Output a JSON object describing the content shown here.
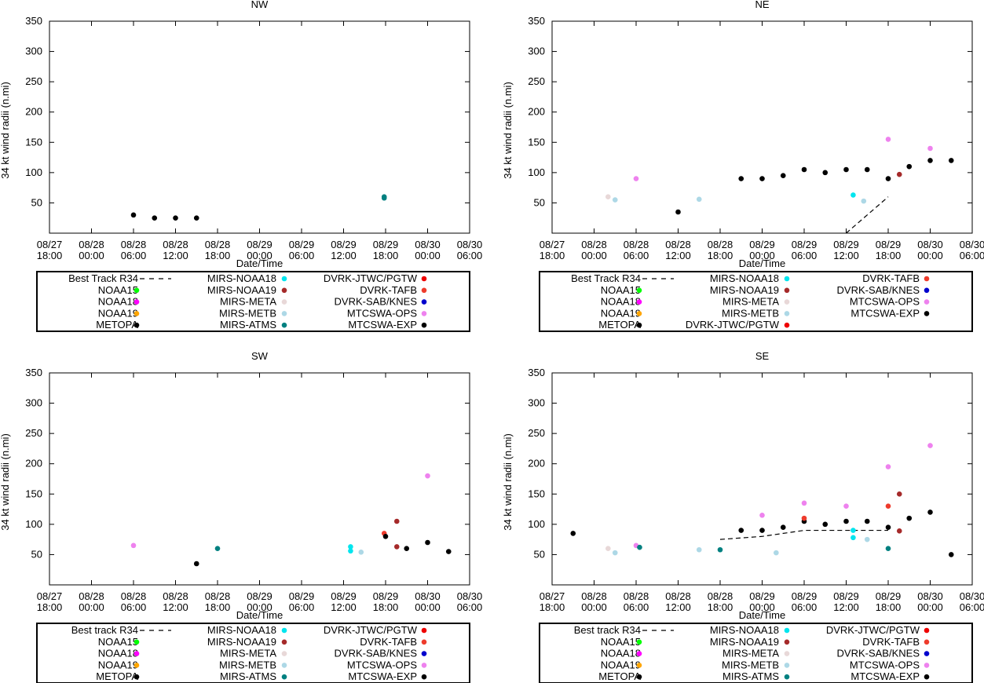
{
  "chart_data": [
    {
      "type": "scatter",
      "title": "NW",
      "xlabel": "Date/Time",
      "ylabel": "34 kt wind radii (n.mi)",
      "xlim": [
        0,
        60
      ],
      "ylim": [
        0,
        350
      ],
      "yticks": [
        50,
        100,
        150,
        200,
        250,
        300,
        350
      ],
      "xtick_labels": [
        [
          "08/27",
          "18:00"
        ],
        [
          "08/28",
          "00:00"
        ],
        [
          "08/28",
          "06:00"
        ],
        [
          "08/28",
          "12:00"
        ],
        [
          "08/28",
          "18:00"
        ],
        [
          "08/29",
          "00:00"
        ],
        [
          "08/29",
          "06:00"
        ],
        [
          "08/29",
          "12:00"
        ],
        [
          "08/29",
          "18:00"
        ],
        [
          "08/30",
          "00:00"
        ],
        [
          "08/30",
          "06:00"
        ]
      ],
      "best_track": [],
      "series": [
        {
          "name": "METOPA",
          "color": "#000000",
          "points": [
            [
              12,
              30
            ],
            [
              15,
              25
            ],
            [
              18,
              25
            ],
            [
              21,
              25
            ]
          ]
        },
        {
          "name": "MIRS-ATMS",
          "color": "#008080",
          "points": [
            [
              47.8,
              60
            ],
            [
              47.8,
              58
            ]
          ]
        }
      ],
      "legend": {
        "columns": [
          [
            {
              "label": "Best Track R34",
              "style": "dash"
            },
            {
              "label": "NOAA15",
              "color": "#00ff00"
            },
            {
              "label": "NOAA18",
              "color": "#ff00ff"
            },
            {
              "label": "NOAA19",
              "color": "#ffa500"
            },
            {
              "label": "METOPA",
              "color": "#000000"
            }
          ],
          [
            {
              "label": "MIRS-NOAA18",
              "color": "#00e5ee"
            },
            {
              "label": "MIRS-NOAA19",
              "color": "#a52a2a"
            },
            {
              "label": "MIRS-META",
              "color": "#e8d8d8"
            },
            {
              "label": "MIRS-METB",
              "color": "#add8e6"
            },
            {
              "label": "MIRS-ATMS",
              "color": "#008080"
            }
          ],
          [
            {
              "label": "DVRK-JTWC/PGTW",
              "color": "#ee0000"
            },
            {
              "label": "DVRK-TAFB",
              "color": "#ee3b2c"
            },
            {
              "label": "DVRK-SAB/KNES",
              "color": "#0000cd"
            },
            {
              "label": "MTCSWA-OPS",
              "color": "#ee82ee"
            },
            {
              "label": "MTCSWA-EXP",
              "color": "#000000"
            }
          ]
        ]
      }
    },
    {
      "type": "scatter",
      "title": "NE",
      "xlabel": "Date/Time",
      "ylabel": "34 kt wind radii (n.mi)",
      "xlim": [
        0,
        60
      ],
      "ylim": [
        0,
        350
      ],
      "yticks": [
        50,
        100,
        150,
        200,
        250,
        300,
        350
      ],
      "xtick_labels": [
        [
          "08/27",
          "18:00"
        ],
        [
          "08/28",
          "00:00"
        ],
        [
          "08/28",
          "06:00"
        ],
        [
          "08/28",
          "12:00"
        ],
        [
          "08/28",
          "18:00"
        ],
        [
          "08/29",
          "00:00"
        ],
        [
          "08/29",
          "06:00"
        ],
        [
          "08/29",
          "12:00"
        ],
        [
          "08/29",
          "18:00"
        ],
        [
          "08/30",
          "00:00"
        ],
        [
          "08/30",
          "06:00"
        ]
      ],
      "best_track": [
        [
          42,
          0
        ],
        [
          48,
          60
        ]
      ],
      "series": [
        {
          "name": "MIRS-META",
          "color": "#e8d8d8",
          "points": [
            [
              8,
              60
            ]
          ]
        },
        {
          "name": "MIRS-METB",
          "color": "#add8e6",
          "points": [
            [
              9,
              55
            ],
            [
              21,
              56
            ],
            [
              44.5,
              53
            ]
          ]
        },
        {
          "name": "MTCSWA-OPS",
          "color": "#ee82ee",
          "points": [
            [
              12,
              90
            ],
            [
              48,
              155
            ],
            [
              54,
              140
            ]
          ]
        },
        {
          "name": "METOPA",
          "color": "#000000",
          "points": [
            [
              18,
              35
            ]
          ]
        },
        {
          "name": "MTCSWA-EXP",
          "color": "#000000",
          "points": [
            [
              27,
              90
            ],
            [
              30,
              90
            ],
            [
              33,
              95
            ],
            [
              36,
              105
            ],
            [
              39,
              100
            ],
            [
              42,
              105
            ],
            [
              45,
              105
            ],
            [
              48,
              90
            ],
            [
              51,
              110
            ],
            [
              54,
              120
            ],
            [
              57,
              120
            ]
          ]
        },
        {
          "name": "MIRS-NOAA18",
          "color": "#00e5ee",
          "points": [
            [
              43,
              63
            ]
          ]
        },
        {
          "name": "MIRS-NOAA19",
          "color": "#a52a2a",
          "points": [
            [
              49.6,
              97
            ]
          ]
        }
      ],
      "legend": {
        "columns": [
          [
            {
              "label": "Best Track R34",
              "style": "dash"
            },
            {
              "label": "NOAA15",
              "color": "#00ff00"
            },
            {
              "label": "NOAA18",
              "color": "#ff00ff"
            },
            {
              "label": "NOAA19",
              "color": "#ffa500"
            },
            {
              "label": "METOPA",
              "color": "#000000"
            }
          ],
          [
            {
              "label": "MIRS-NOAA18",
              "color": "#00e5ee"
            },
            {
              "label": "MIRS-NOAA19",
              "color": "#a52a2a"
            },
            {
              "label": "MIRS-META",
              "color": "#e8d8d8"
            },
            {
              "label": "MIRS-METB",
              "color": "#add8e6"
            },
            {
              "label": "DVRK-JTWC/PGTW",
              "color": "#ee0000"
            }
          ],
          [
            {
              "label": "DVRK-TAFB",
              "color": "#ee3b2c"
            },
            {
              "label": "DVRK-SAB/KNES",
              "color": "#0000cd"
            },
            {
              "label": "MTCSWA-OPS",
              "color": "#ee82ee"
            },
            {
              "label": "MTCSWA-EXP",
              "color": "#000000"
            }
          ]
        ]
      }
    },
    {
      "type": "scatter",
      "title": "SW",
      "xlabel": "Date/Time",
      "ylabel": "34 kt wind radii (n.mi)",
      "xlim": [
        0,
        60
      ],
      "ylim": [
        0,
        350
      ],
      "yticks": [
        50,
        100,
        150,
        200,
        250,
        300,
        350
      ],
      "xtick_labels": [
        [
          "08/27",
          "18:00"
        ],
        [
          "08/28",
          "00:00"
        ],
        [
          "08/28",
          "06:00"
        ],
        [
          "08/28",
          "12:00"
        ],
        [
          "08/28",
          "18:00"
        ],
        [
          "08/29",
          "00:00"
        ],
        [
          "08/29",
          "06:00"
        ],
        [
          "08/29",
          "12:00"
        ],
        [
          "08/29",
          "18:00"
        ],
        [
          "08/30",
          "00:00"
        ],
        [
          "08/30",
          "06:00"
        ]
      ],
      "best_track": [],
      "series": [
        {
          "name": "MTCSWA-OPS",
          "color": "#ee82ee",
          "points": [
            [
              12,
              65
            ],
            [
              54,
              180
            ]
          ]
        },
        {
          "name": "METOPA",
          "color": "#000000",
          "points": [
            [
              21,
              35
            ]
          ]
        },
        {
          "name": "MIRS-ATMS",
          "color": "#008080",
          "points": [
            [
              24,
              60
            ]
          ]
        },
        {
          "name": "MIRS-NOAA18",
          "color": "#00e5ee",
          "points": [
            [
              43,
              63
            ],
            [
              43,
              56
            ]
          ]
        },
        {
          "name": "MIRS-METB",
          "color": "#add8e6",
          "points": [
            [
              44.5,
              54
            ]
          ]
        },
        {
          "name": "DVRK-TAFB",
          "color": "#ee3b2c",
          "points": [
            [
              47.8,
              85
            ]
          ]
        },
        {
          "name": "MIRS-NOAA19",
          "color": "#a52a2a",
          "points": [
            [
              49.6,
              105
            ],
            [
              49.6,
              63
            ]
          ]
        },
        {
          "name": "MTCSWA-EXP",
          "color": "#000000",
          "points": [
            [
              48,
              80
            ],
            [
              51,
              60
            ],
            [
              54,
              70
            ],
            [
              57,
              55
            ]
          ]
        }
      ],
      "legend": {
        "columns": [
          [
            {
              "label": "Best track R34",
              "style": "dash"
            },
            {
              "label": "NOAA15",
              "color": "#00ff00"
            },
            {
              "label": "NOAA18",
              "color": "#ff00ff"
            },
            {
              "label": "NOAA19",
              "color": "#ffa500"
            },
            {
              "label": "METOPA",
              "color": "#000000"
            }
          ],
          [
            {
              "label": "MIRS-NOAA18",
              "color": "#00e5ee"
            },
            {
              "label": "MIRS-NOAA19",
              "color": "#a52a2a"
            },
            {
              "label": "MIRS-META",
              "color": "#e8d8d8"
            },
            {
              "label": "MIRS-METB",
              "color": "#add8e6"
            },
            {
              "label": "MIRS-ATMS",
              "color": "#008080"
            }
          ],
          [
            {
              "label": "DVRK-JTWC/PGTW",
              "color": "#ee0000"
            },
            {
              "label": "DVRK-TAFB",
              "color": "#ee3b2c"
            },
            {
              "label": "DVRK-SAB/KNES",
              "color": "#0000cd"
            },
            {
              "label": "MTCSWA-OPS",
              "color": "#ee82ee"
            },
            {
              "label": "MTCSWA-EXP",
              "color": "#000000"
            }
          ]
        ]
      }
    },
    {
      "type": "scatter",
      "title": "SE",
      "xlabel": "Date/Time",
      "ylabel": "34 kt wind radii (n.mi)",
      "xlim": [
        0,
        60
      ],
      "ylim": [
        0,
        350
      ],
      "yticks": [
        50,
        100,
        150,
        200,
        250,
        300,
        350
      ],
      "xtick_labels": [
        [
          "08/27",
          "18:00"
        ],
        [
          "08/28",
          "00:00"
        ],
        [
          "08/28",
          "06:00"
        ],
        [
          "08/28",
          "12:00"
        ],
        [
          "08/28",
          "18:00"
        ],
        [
          "08/29",
          "00:00"
        ],
        [
          "08/29",
          "06:00"
        ],
        [
          "08/29",
          "12:00"
        ],
        [
          "08/29",
          "18:00"
        ],
        [
          "08/30",
          "00:00"
        ],
        [
          "08/30",
          "06:00"
        ]
      ],
      "best_track": [
        [
          24,
          75
        ],
        [
          30,
          80
        ],
        [
          36,
          90
        ],
        [
          42,
          90
        ],
        [
          48,
          90
        ]
      ],
      "series": [
        {
          "name": "METOPA",
          "color": "#000000",
          "points": [
            [
              3,
              85
            ],
            [
              57,
              50
            ]
          ]
        },
        {
          "name": "MIRS-META",
          "color": "#e8d8d8",
          "points": [
            [
              8,
              60
            ]
          ]
        },
        {
          "name": "MIRS-METB",
          "color": "#add8e6",
          "points": [
            [
              9,
              53
            ],
            [
              21,
              58
            ],
            [
              32,
              53
            ],
            [
              45,
              75
            ]
          ]
        },
        {
          "name": "MTCSWA-OPS",
          "color": "#ee82ee",
          "points": [
            [
              12,
              65
            ],
            [
              30,
              115
            ],
            [
              36,
              135
            ],
            [
              42,
              130
            ],
            [
              48,
              195
            ],
            [
              54,
              230
            ]
          ]
        },
        {
          "name": "MIRS-ATMS",
          "color": "#008080",
          "points": [
            [
              12.5,
              62
            ],
            [
              24,
              58
            ],
            [
              48,
              60
            ]
          ]
        },
        {
          "name": "MTCSWA-EXP",
          "color": "#000000",
          "points": [
            [
              27,
              90
            ],
            [
              30,
              90
            ],
            [
              33,
              95
            ],
            [
              36,
              105
            ],
            [
              39,
              100
            ],
            [
              42,
              105
            ],
            [
              45,
              105
            ],
            [
              48,
              95
            ],
            [
              51,
              110
            ],
            [
              54,
              120
            ]
          ]
        },
        {
          "name": "DVRK-TAFB",
          "color": "#ee3b2c",
          "points": [
            [
              36,
              110
            ],
            [
              48,
              130
            ]
          ]
        },
        {
          "name": "MIRS-NOAA18",
          "color": "#00e5ee",
          "points": [
            [
              43,
              90
            ],
            [
              43,
              78
            ]
          ]
        },
        {
          "name": "MIRS-NOAA19",
          "color": "#a52a2a",
          "points": [
            [
              49.6,
              150
            ],
            [
              49.6,
              89
            ]
          ]
        }
      ],
      "legend": {
        "columns": [
          [
            {
              "label": "Best track R34",
              "style": "dash"
            },
            {
              "label": "NOAA15",
              "color": "#00ff00"
            },
            {
              "label": "NOAA18",
              "color": "#ff00ff"
            },
            {
              "label": "NOAA19",
              "color": "#ffa500"
            },
            {
              "label": "METOPA",
              "color": "#000000"
            }
          ],
          [
            {
              "label": "MIRS-NOAA18",
              "color": "#00e5ee"
            },
            {
              "label": "MIRS-NOAA19",
              "color": "#a52a2a"
            },
            {
              "label": "MIRS-META",
              "color": "#e8d8d8"
            },
            {
              "label": "MIRS-METB",
              "color": "#add8e6"
            },
            {
              "label": "MIRS-ATMS",
              "color": "#008080"
            }
          ],
          [
            {
              "label": "DVRK-JTWC/PGTW",
              "color": "#ee0000"
            },
            {
              "label": "DVRK-TAFB",
              "color": "#ee3b2c"
            },
            {
              "label": "DVRK-SAB/KNES",
              "color": "#0000cd"
            },
            {
              "label": "MTCSWA-OPS",
              "color": "#ee82ee"
            },
            {
              "label": "MTCSWA-EXP",
              "color": "#000000"
            }
          ]
        ]
      }
    }
  ]
}
